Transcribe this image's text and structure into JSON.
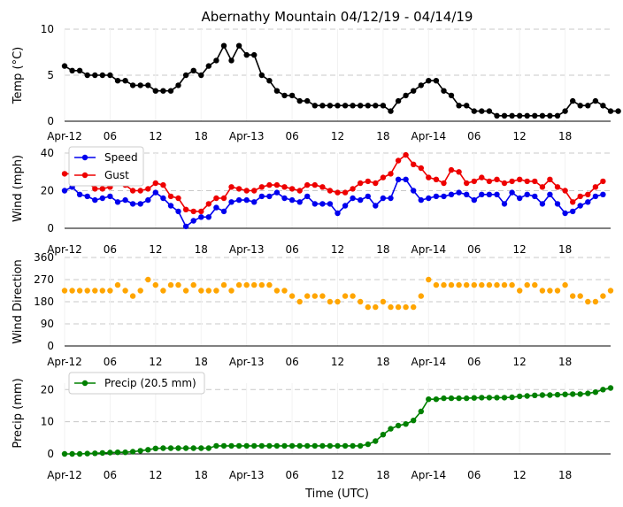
{
  "title": "Abernathy Mountain 04/12/19 - 04/14/19",
  "xlabel": "Time (UTC)",
  "x_ticks": [
    "Apr-12",
    "06",
    "12",
    "18",
    "Apr-13",
    "06",
    "12",
    "18",
    "Apr-14",
    "06",
    "12",
    "18"
  ],
  "x_tick_hours": [
    0,
    6,
    12,
    18,
    24,
    30,
    36,
    42,
    48,
    54,
    60,
    66
  ],
  "colors": {
    "speed": "#0000ee",
    "gust": "#ee0000",
    "direction": "#ffa500",
    "precip": "#008000",
    "temp": "#000000",
    "grid": "#c8c8c8"
  },
  "chart_data": [
    {
      "type": "line",
      "id": "temp",
      "ylabel": "Temp (°C)",
      "ylim": [
        0,
        10
      ],
      "yticks": [
        "0",
        "5",
        "10"
      ],
      "yticks_values": [
        0,
        5,
        10
      ],
      "grid": true,
      "x_hours_step": 1,
      "series": [
        {
          "color_key": "temp",
          "values": [
            6.0,
            5.5,
            5.5,
            5.0,
            5.0,
            5.0,
            5.0,
            4.4,
            4.4,
            3.9,
            3.9,
            3.9,
            3.3,
            3.3,
            3.3,
            3.9,
            5.0,
            5.5,
            5.0,
            6.0,
            6.6,
            8.2,
            6.6,
            8.2,
            7.2,
            7.2,
            5.0,
            4.4,
            3.3,
            2.8,
            2.8,
            2.2,
            2.2,
            1.7,
            1.7,
            1.7,
            1.7,
            1.7,
            1.7,
            1.7,
            1.7,
            1.7,
            1.7,
            1.1,
            2.2,
            2.8,
            3.3,
            3.9,
            4.4,
            4.4,
            3.3,
            2.8,
            1.7,
            1.7,
            1.1,
            1.1,
            1.1,
            0.6,
            0.6,
            0.6,
            0.6,
            0.6,
            0.6,
            0.6,
            0.6,
            0.6,
            1.1,
            2.2,
            1.7,
            1.7,
            2.2,
            1.7,
            1.1,
            1.1
          ]
        }
      ]
    },
    {
      "type": "line",
      "id": "wind",
      "ylabel": "Wind (mph)",
      "ylim": [
        0,
        40
      ],
      "yticks": [
        "0",
        "20",
        "40"
      ],
      "yticks_values": [
        0,
        20,
        40
      ],
      "grid": true,
      "legend": "upper-left",
      "x_hours_step": 1,
      "series": [
        {
          "name": "Speed",
          "color_key": "speed",
          "values": [
            20,
            22,
            18,
            17,
            15,
            16,
            17,
            14,
            15,
            13,
            13,
            15,
            19,
            16,
            12,
            9,
            1,
            4,
            6,
            6,
            11,
            9,
            14,
            15,
            15,
            14,
            17,
            17,
            19,
            16,
            15,
            14,
            17,
            13,
            13,
            13,
            8,
            12,
            16,
            15,
            17,
            12,
            16,
            16,
            26,
            26,
            20,
            15,
            16,
            17,
            17,
            18,
            19,
            18,
            15,
            18,
            18,
            18,
            13,
            19,
            16,
            18,
            17,
            13,
            18,
            13,
            8,
            9,
            12,
            14,
            17,
            18
          ]
        },
        {
          "name": "Gust",
          "color_key": "gust",
          "values": [
            29,
            29,
            27,
            25,
            21,
            21,
            22,
            25,
            23,
            20,
            20,
            21,
            24,
            23,
            17,
            16,
            10,
            9,
            9,
            13,
            16,
            16,
            22,
            21,
            20,
            20,
            22,
            23,
            23,
            22,
            21,
            20,
            23,
            23,
            22,
            20,
            19,
            19,
            21,
            24,
            25,
            24,
            27,
            29,
            36,
            39,
            34,
            32,
            27,
            26,
            24,
            31,
            30,
            24,
            25,
            27,
            25,
            26,
            24,
            25,
            26,
            25,
            25,
            22,
            26,
            22,
            20,
            14,
            17,
            18,
            22,
            25
          ]
        }
      ]
    },
    {
      "type": "scatter",
      "id": "direction",
      "ylabel": "Wind Direction",
      "ylim": [
        0,
        360
      ],
      "yticks": [
        "0",
        "90",
        "180",
        "270",
        "360"
      ],
      "yticks_values": [
        0,
        90,
        180,
        270,
        360
      ],
      "grid": true,
      "x_hours_step": 1,
      "series": [
        {
          "color_key": "direction",
          "values": [
            225,
            225,
            225,
            225,
            225,
            225,
            225,
            248,
            225,
            203,
            225,
            270,
            248,
            225,
            248,
            248,
            225,
            248,
            225,
            225,
            225,
            248,
            225,
            248,
            248,
            248,
            248,
            248,
            225,
            225,
            203,
            180,
            203,
            203,
            203,
            180,
            180,
            203,
            203,
            180,
            158,
            158,
            180,
            158,
            158,
            158,
            158,
            203,
            270,
            248,
            248,
            248,
            248,
            248,
            248,
            248,
            248,
            248,
            248,
            248,
            225,
            248,
            248,
            225,
            225,
            225,
            248,
            203,
            203,
            180,
            180,
            203,
            225
          ]
        }
      ]
    },
    {
      "type": "line",
      "id": "precip",
      "ylabel": "Precip (mm)",
      "ylim": [
        0,
        22
      ],
      "yticks": [
        "0",
        "10",
        "20"
      ],
      "yticks_values": [
        0,
        10,
        20
      ],
      "grid": true,
      "legend": "upper-left",
      "x_hours_step": 1,
      "series": [
        {
          "name": "Precip (20.5 mm)",
          "color_key": "precip",
          "values": [
            0,
            0,
            0,
            0.1,
            0.2,
            0.3,
            0.4,
            0.5,
            0.5,
            0.7,
            1.0,
            1.3,
            1.7,
            1.8,
            1.8,
            1.8,
            1.8,
            1.8,
            1.8,
            1.8,
            2.5,
            2.5,
            2.5,
            2.5,
            2.5,
            2.5,
            2.5,
            2.5,
            2.5,
            2.5,
            2.5,
            2.5,
            2.5,
            2.5,
            2.5,
            2.5,
            2.5,
            2.5,
            2.5,
            2.5,
            3.0,
            4.0,
            6.0,
            7.8,
            8.8,
            9.3,
            10.4,
            13.2,
            17.0,
            17.0,
            17.3,
            17.3,
            17.3,
            17.3,
            17.4,
            17.5,
            17.5,
            17.5,
            17.5,
            17.6,
            17.9,
            18.0,
            18.2,
            18.3,
            18.3,
            18.4,
            18.5,
            18.6,
            18.6,
            18.8,
            19.2,
            20.0,
            20.5
          ]
        }
      ]
    }
  ]
}
